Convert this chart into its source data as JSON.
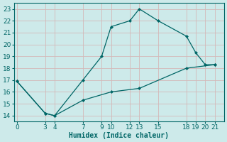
{
  "x_upper": [
    0,
    3,
    4,
    7,
    9,
    10,
    12,
    13,
    15,
    18,
    19,
    20,
    21
  ],
  "y_upper": [
    16.9,
    14.2,
    14.0,
    17.0,
    19.0,
    21.5,
    22.0,
    23.0,
    22.0,
    20.7,
    19.3,
    18.3,
    18.3
  ],
  "x_lower": [
    0,
    3,
    4,
    7,
    10,
    13,
    18,
    21
  ],
  "y_lower": [
    16.9,
    14.2,
    14.0,
    15.3,
    16.0,
    16.3,
    18.0,
    18.3
  ],
  "line_color": "#006666",
  "marker_color": "#006666",
  "bg_color": "#cdeaea",
  "grid_color": "#b8d8d8",
  "xlabel": "Humidex (Indice chaleur)",
  "xticks": [
    0,
    3,
    4,
    7,
    9,
    10,
    12,
    13,
    15,
    18,
    19,
    20,
    21
  ],
  "yticks": [
    14,
    15,
    16,
    17,
    18,
    19,
    20,
    21,
    22,
    23
  ],
  "xlim": [
    -0.3,
    22.0
  ],
  "ylim": [
    13.5,
    23.5
  ],
  "label_fontsize": 7,
  "tick_fontsize": 6.5
}
